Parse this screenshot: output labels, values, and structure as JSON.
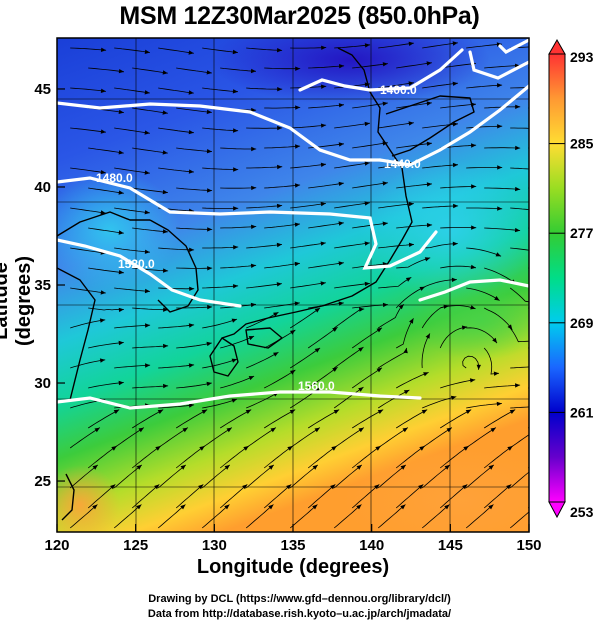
{
  "title": "MSM 12Z30Mar2025 (850.0hPa)",
  "axes": {
    "xlabel": "Longitude (degrees)",
    "ylabel": "Latitude  (degrees)",
    "x_ticks": [
      "120",
      "125",
      "130",
      "135",
      "140",
      "145",
      "150"
    ],
    "y_ticks": [
      "25",
      "30",
      "35",
      "40",
      "45"
    ],
    "xlim": [
      120,
      150
    ],
    "ylim": [
      22.4,
      47.6
    ]
  },
  "colorbar": {
    "ticks": [
      "293",
      "285",
      "277",
      "269",
      "261",
      "253"
    ],
    "range": [
      253,
      293
    ],
    "colors": [
      "#ff00ff",
      "#6600cc",
      "#0000cc",
      "#1a66ff",
      "#00ccee",
      "#00dd88",
      "#33cc33",
      "#99dd22",
      "#ffdd33",
      "#ff9933",
      "#ff3333"
    ]
  },
  "contours": {
    "color": "#ffffff",
    "labels": [
      "1400.0",
      "1440.0",
      "1480.0",
      "1520.0",
      "1560.0"
    ]
  },
  "credits": {
    "line1": "Drawing by DCL (https://www.gfd–dennou.org/library/dcl/)",
    "line2": "Data from http://database.rish.kyoto–u.ac.jp/arch/jmadata/"
  }
}
